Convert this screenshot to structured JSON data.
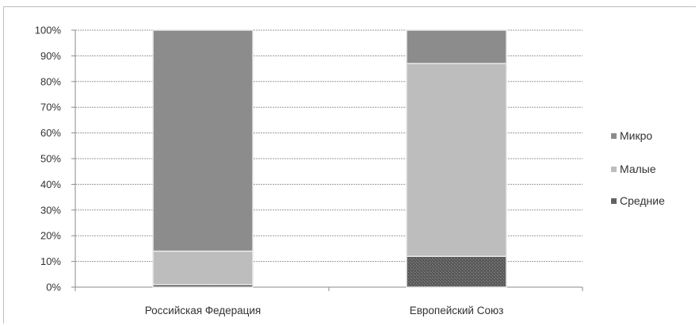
{
  "chart_data": {
    "type": "bar",
    "stacked": true,
    "percent": true,
    "title": "",
    "xlabel": "",
    "ylabel": "",
    "ylim": [
      0,
      100
    ],
    "yticks": [
      "0%",
      "10%",
      "20%",
      "30%",
      "40%",
      "50%",
      "60%",
      "70%",
      "80%",
      "90%",
      "100%"
    ],
    "categories": [
      "Российская Федерация",
      "Европейский Союз"
    ],
    "series": [
      {
        "name": "Средние",
        "values": [
          1,
          12
        ],
        "color": "#6b6b6b",
        "pattern": "speckled"
      },
      {
        "name": "Малые",
        "values": [
          13,
          75
        ],
        "color": "#bdbdbd"
      },
      {
        "name": "Микро",
        "values": [
          86,
          13
        ],
        "color": "#8c8c8c"
      }
    ],
    "legend": {
      "position": "right",
      "order": [
        "Микро",
        "Малые",
        "Средние"
      ]
    },
    "grid": true
  }
}
